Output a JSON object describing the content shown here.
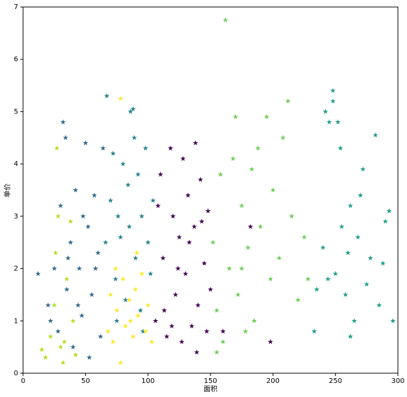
{
  "chart_data": {
    "type": "scatter",
    "xlabel": "面积",
    "ylabel": "单价",
    "xlim": [
      0,
      300
    ],
    "ylim": [
      0,
      7
    ],
    "xticks": [
      0,
      50,
      100,
      150,
      200,
      250,
      300
    ],
    "yticks": [
      0,
      1,
      2,
      3,
      4,
      5,
      6,
      7
    ],
    "marker": "star",
    "series": [
      {
        "color": "#440154",
        "x": [
          106,
          110,
          112,
          115,
          118,
          120,
          122,
          125,
          127,
          128,
          130,
          132,
          135,
          137,
          138,
          140,
          142,
          145,
          147,
          148,
          150,
          113,
          124,
          133,
          143,
          108,
          119,
          139,
          160,
          198,
          182
        ],
        "y": [
          1.0,
          3.8,
          2.2,
          0.7,
          4.3,
          3.0,
          1.5,
          2.6,
          0.6,
          4.1,
          1.9,
          3.4,
          0.9,
          2.8,
          4.4,
          1.3,
          3.7,
          2.1,
          0.8,
          3.1,
          1.6,
          1.2,
          2.0,
          2.5,
          2.9,
          3.2,
          0.9,
          0.4,
          0.8,
          0.6,
          2.8
        ]
      },
      {
        "color": "#31688e",
        "x": [
          12,
          20,
          25,
          28,
          30,
          32,
          34,
          35,
          38,
          40,
          42,
          45,
          47,
          50,
          52,
          55,
          57,
          60,
          62,
          64,
          48,
          36,
          44,
          58,
          22,
          53
        ],
        "y": [
          1.9,
          1.3,
          2.0,
          0.8,
          3.2,
          4.8,
          4.5,
          1.6,
          2.5,
          0.5,
          3.5,
          2.0,
          1.1,
          4.4,
          2.8,
          1.5,
          3.4,
          2.3,
          0.7,
          4.3,
          3.0,
          2.2,
          1.3,
          2.0,
          1.0,
          0.3
        ]
      },
      {
        "color": "#26828e",
        "x": [
          66,
          67,
          70,
          72,
          74,
          76,
          78,
          80,
          82,
          84,
          86,
          88,
          89,
          90,
          92,
          94,
          95,
          98,
          100,
          102,
          104,
          75,
          85,
          96
        ],
        "y": [
          2.5,
          5.3,
          3.3,
          4.2,
          1.8,
          3.0,
          2.6,
          4.0,
          1.4,
          3.6,
          5.0,
          5.05,
          4.5,
          2.2,
          3.8,
          1.2,
          3.0,
          4.3,
          2.5,
          1.9,
          3.3,
          1.0,
          2.8,
          0.8
        ]
      },
      {
        "color": "#1f9e89",
        "x": [
          233,
          235,
          240,
          242,
          245,
          248,
          248,
          250,
          252,
          254,
          255,
          258,
          260,
          262,
          265,
          268,
          270,
          272,
          275,
          278,
          282,
          285,
          288,
          290,
          293,
          296,
          262,
          244
        ],
        "y": [
          0.8,
          1.6,
          2.4,
          5.0,
          4.8,
          5.4,
          5.2,
          1.9,
          4.8,
          4.3,
          2.8,
          1.5,
          2.3,
          3.2,
          1.0,
          2.6,
          3.4,
          3.9,
          1.7,
          2.2,
          4.55,
          1.3,
          2.1,
          2.9,
          3.1,
          1.0,
          0.7,
          1.8
        ]
      },
      {
        "color": "#6ece58",
        "x": [
          152,
          155,
          158,
          160,
          162,
          165,
          168,
          170,
          172,
          175,
          178,
          180,
          183,
          185,
          188,
          190,
          195,
          198,
          200,
          205,
          208,
          212,
          215,
          220,
          225,
          228,
          155,
          175
        ],
        "y": [
          2.5,
          1.2,
          3.8,
          0.6,
          6.75,
          2.0,
          4.1,
          4.9,
          1.5,
          3.2,
          0.8,
          2.4,
          3.9,
          1.0,
          4.3,
          2.8,
          4.9,
          1.8,
          3.5,
          2.2,
          4.5,
          5.2,
          3.0,
          1.4,
          2.6,
          1.8,
          0.4,
          2.0
        ]
      },
      {
        "color": "#fde725",
        "x": [
          68,
          70,
          72,
          75,
          78,
          78,
          80,
          82,
          85,
          88,
          90,
          92,
          95,
          98,
          100,
          103,
          86,
          74,
          91
        ],
        "y": [
          0.8,
          1.5,
          0.6,
          1.2,
          0.2,
          5.25,
          1.8,
          0.9,
          1.4,
          0.7,
          1.6,
          1.1,
          1.9,
          0.8,
          1.3,
          0.6,
          1.0,
          2.0,
          2.3
        ]
      },
      {
        "color": "#b5de2b",
        "x": [
          15,
          18,
          22,
          25,
          27,
          28,
          30,
          32,
          35,
          38,
          40,
          33,
          26,
          42
        ],
        "y": [
          0.45,
          0.3,
          0.7,
          1.3,
          4.3,
          3.0,
          0.5,
          0.2,
          1.8,
          2.9,
          1.0,
          0.6,
          2.3,
          0.35
        ]
      }
    ]
  }
}
